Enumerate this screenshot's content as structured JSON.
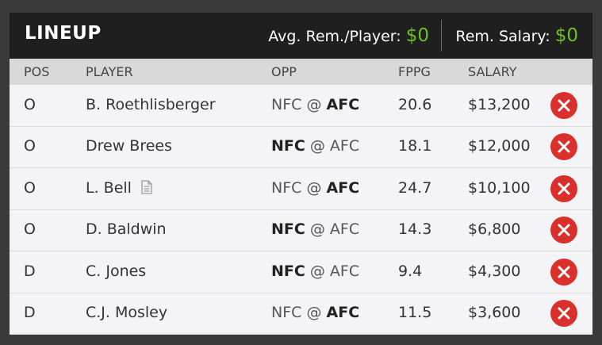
{
  "header": {
    "title": "LINEUP",
    "avg_label": "Avg. Rem./Player:",
    "avg_value": "$0",
    "rem_label": "Rem. Salary:",
    "rem_value": "$0"
  },
  "columns": {
    "pos": "POS",
    "player": "PLAYER",
    "opp": "OPP",
    "fppg": "FPPG",
    "salary": "SALARY"
  },
  "rows": [
    {
      "pos": "O",
      "player": "B. Roethlisberger",
      "opp_left": "NFC",
      "opp_sep": "@",
      "opp_right": "AFC",
      "bold_side": "right",
      "fppg": "20.6",
      "salary": "$13,200",
      "note": false
    },
    {
      "pos": "O",
      "player": "Drew Brees",
      "opp_left": "NFC",
      "opp_sep": "@",
      "opp_right": "AFC",
      "bold_side": "left",
      "fppg": "18.1",
      "salary": "$12,000",
      "note": false
    },
    {
      "pos": "O",
      "player": "L. Bell",
      "opp_left": "NFC",
      "opp_sep": "@",
      "opp_right": "AFC",
      "bold_side": "right",
      "fppg": "24.7",
      "salary": "$10,100",
      "note": true
    },
    {
      "pos": "O",
      "player": "D. Baldwin",
      "opp_left": "NFC",
      "opp_sep": "@",
      "opp_right": "AFC",
      "bold_side": "left",
      "fppg": "14.3",
      "salary": "$6,800",
      "note": false
    },
    {
      "pos": "D",
      "player": "C. Jones",
      "opp_left": "NFC",
      "opp_sep": "@",
      "opp_right": "AFC",
      "bold_side": "left",
      "fppg": "9.4",
      "salary": "$4,300",
      "note": false
    },
    {
      "pos": "D",
      "player": "C.J. Mosley",
      "opp_left": "NFC",
      "opp_sep": "@",
      "opp_right": "AFC",
      "bold_side": "right",
      "fppg": "11.5",
      "salary": "$3,600",
      "note": false
    }
  ],
  "icons": {
    "remove": "close-circle-icon",
    "note": "document-icon"
  },
  "colors": {
    "accent_green": "#6fbf26",
    "remove_red": "#d9302b",
    "header_bg": "#1f1f1f"
  }
}
